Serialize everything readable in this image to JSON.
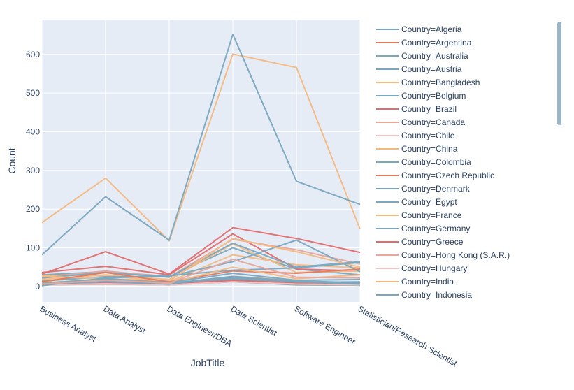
{
  "chart_data": {
    "type": "line",
    "xlabel": "JobTitle",
    "ylabel": "Count",
    "categories": [
      "Business Analyst",
      "Data Analyst",
      "Data Engineer/DBA",
      "Data Scientist",
      "Software Engineer",
      "Statistician/Research Scientist"
    ],
    "yticks": [
      0,
      100,
      200,
      300,
      400,
      500,
      600
    ],
    "ylim": [
      -40,
      690
    ],
    "grid": true,
    "legend_position": "right",
    "series": [
      {
        "name": "Country=Algeria",
        "color": "#7aa6bf",
        "values": [
          4,
          8,
          4,
          12,
          4,
          3
        ]
      },
      {
        "name": "Country=Argentina",
        "color": "#e07a5f",
        "values": [
          10,
          14,
          7,
          24,
          12,
          9
        ]
      },
      {
        "name": "Country=Australia",
        "color": "#7aa6bf",
        "values": [
          30,
          38,
          26,
          100,
          45,
          30
        ]
      },
      {
        "name": "Country=Austria",
        "color": "#7aa6bf",
        "values": [
          5,
          9,
          6,
          20,
          10,
          12
        ]
      },
      {
        "name": "Country=Bangladesh",
        "color": "#f4b981",
        "values": [
          8,
          12,
          6,
          26,
          16,
          7
        ]
      },
      {
        "name": "Country=Belgium",
        "color": "#7aa6bf",
        "values": [
          6,
          10,
          8,
          26,
          14,
          10
        ]
      },
      {
        "name": "Country=Brazil",
        "color": "#e36b6b",
        "values": [
          36,
          52,
          30,
          136,
          45,
          40
        ]
      },
      {
        "name": "Country=Canada",
        "color": "#e8a79a",
        "values": [
          24,
          40,
          24,
          122,
          95,
          58
        ]
      },
      {
        "name": "Country=Chile",
        "color": "#f2c2c2",
        "values": [
          4,
          7,
          5,
          14,
          6,
          4
        ]
      },
      {
        "name": "Country=China",
        "color": "#f4b981",
        "values": [
          28,
          28,
          12,
          82,
          56,
          48
        ]
      },
      {
        "name": "Country=Colombia",
        "color": "#7aa6bf",
        "values": [
          6,
          14,
          7,
          20,
          8,
          6
        ]
      },
      {
        "name": "Country=Czech Republic",
        "color": "#e07a5f",
        "values": [
          4,
          8,
          6,
          16,
          10,
          6
        ]
      },
      {
        "name": "Country=Denmark",
        "color": "#7aa6bf",
        "values": [
          4,
          6,
          4,
          14,
          8,
          10
        ]
      },
      {
        "name": "Country=Egypt",
        "color": "#7aa6bf",
        "values": [
          4,
          12,
          4,
          18,
          10,
          5
        ]
      },
      {
        "name": "Country=France",
        "color": "#f4b981",
        "values": [
          18,
          30,
          18,
          110,
          36,
          40
        ]
      },
      {
        "name": "Country=Germany",
        "color": "#7aa6bf",
        "values": [
          22,
          36,
          24,
          112,
          50,
          64
        ]
      },
      {
        "name": "Country=Greece",
        "color": "#e36b6b",
        "values": [
          4,
          8,
          5,
          16,
          8,
          6
        ]
      },
      {
        "name": "Country=Hong Kong (S.A.R.)",
        "color": "#e8a79a",
        "values": [
          4,
          6,
          4,
          12,
          6,
          4
        ]
      },
      {
        "name": "Country=Hungary",
        "color": "#f2c2c2",
        "values": [
          4,
          7,
          4,
          12,
          6,
          4
        ]
      },
      {
        "name": "Country=India",
        "color": "#f4b981",
        "values": [
          165,
          280,
          118,
          601,
          566,
          148
        ]
      },
      {
        "name": "Country=Indonesia",
        "color": "#7aa6bf",
        "values": [
          6,
          12,
          6,
          24,
          12,
          6
        ]
      },
      {
        "name": "",
        "color": "#7aa6bf",
        "values": [
          82,
          232,
          120,
          652,
          272,
          212
        ]
      },
      {
        "name": "",
        "color": "#e36b6b",
        "values": [
          32,
          90,
          32,
          152,
          124,
          88
        ]
      },
      {
        "name": "",
        "color": "#7aa6bf",
        "values": [
          14,
          25,
          26,
          64,
          120,
          38
        ]
      },
      {
        "name": "",
        "color": "#f4b981",
        "values": [
          26,
          20,
          14,
          124,
          90,
          50
        ]
      },
      {
        "name": "",
        "color": "#7aa6bf",
        "values": [
          2,
          22,
          28,
          42,
          48,
          62
        ]
      },
      {
        "name": "",
        "color": "#e07a5f",
        "values": [
          12,
          36,
          12,
          40,
          34,
          45
        ]
      },
      {
        "name": "",
        "color": "#f4b981",
        "values": [
          10,
          18,
          8,
          50,
          20,
          30
        ]
      },
      {
        "name": "",
        "color": "#7aa6bf",
        "values": [
          8,
          20,
          10,
          34,
          16,
          18
        ]
      },
      {
        "name": "",
        "color": "#e8a79a",
        "values": [
          6,
          16,
          9,
          70,
          24,
          22
        ]
      }
    ]
  }
}
